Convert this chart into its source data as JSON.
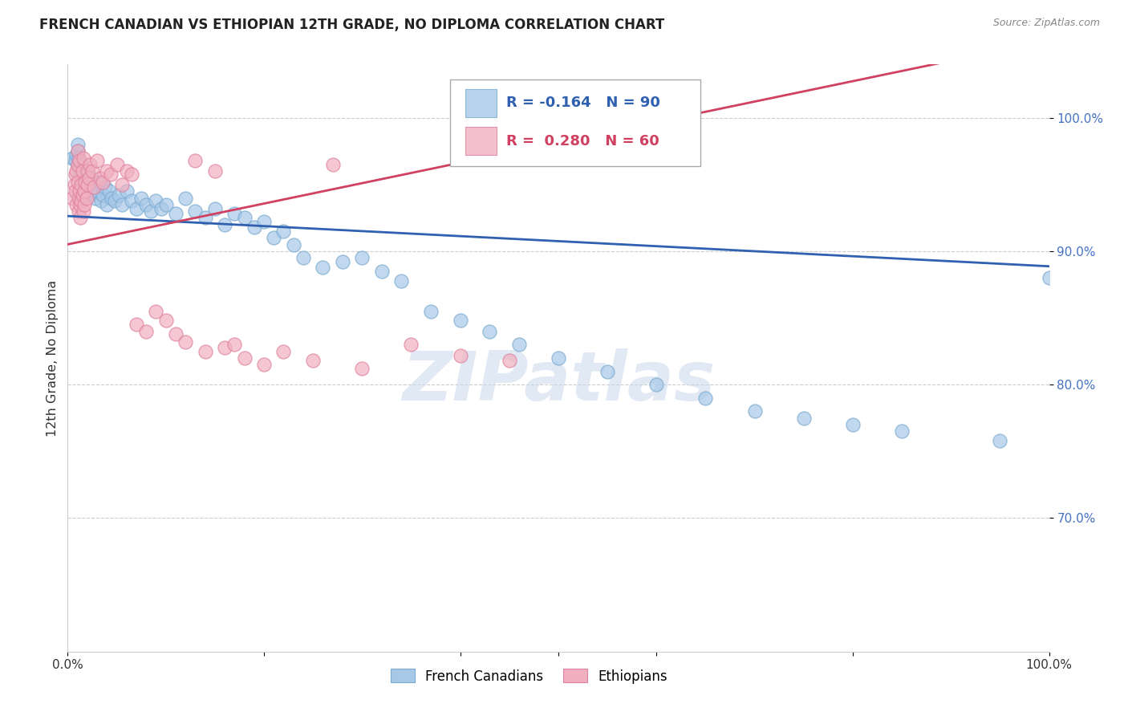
{
  "title": "FRENCH CANADIAN VS ETHIOPIAN 12TH GRADE, NO DIPLOMA CORRELATION CHART",
  "source": "Source: ZipAtlas.com",
  "ylabel": "12th Grade, No Diploma",
  "xlim": [
    0.0,
    1.0
  ],
  "ylim": [
    0.6,
    1.04
  ],
  "xtick_vals": [
    0.0,
    0.2,
    0.4,
    0.5,
    0.6,
    0.8,
    1.0
  ],
  "xtick_labels": [
    "0.0%",
    "",
    "",
    "",
    "",
    "",
    "100.0%"
  ],
  "ytick_vals": [
    0.7,
    0.8,
    0.9,
    1.0
  ],
  "ytick_labels": [
    "70.0%",
    "80.0%",
    "90.0%",
    "100.0%"
  ],
  "legend_blue_r": "-0.164",
  "legend_blue_n": "90",
  "legend_pink_r": "0.280",
  "legend_pink_n": "60",
  "legend_label_blue": "French Canadians",
  "legend_label_pink": "Ethiopians",
  "blue_color": "#A8C8E8",
  "blue_edge": "#7AAAD0",
  "pink_color": "#F0B0C0",
  "pink_edge": "#E080A0",
  "trend_blue": "#3060B0",
  "trend_pink": "#D04060",
  "watermark": "ZIPatlas",
  "blue_x": [
    0.005,
    0.008,
    0.009,
    0.01,
    0.01,
    0.01,
    0.011,
    0.011,
    0.012,
    0.012,
    0.013,
    0.013,
    0.014,
    0.014,
    0.015,
    0.015,
    0.016,
    0.016,
    0.017,
    0.017,
    0.018,
    0.018,
    0.019,
    0.019,
    0.02,
    0.02,
    0.02,
    0.021,
    0.021,
    0.022,
    0.022,
    0.023,
    0.024,
    0.025,
    0.026,
    0.027,
    0.028,
    0.03,
    0.032,
    0.034,
    0.036,
    0.038,
    0.04,
    0.042,
    0.045,
    0.048,
    0.052,
    0.055,
    0.06,
    0.065,
    0.07,
    0.075,
    0.08,
    0.085,
    0.09,
    0.095,
    0.1,
    0.11,
    0.12,
    0.13,
    0.14,
    0.15,
    0.16,
    0.17,
    0.18,
    0.19,
    0.2,
    0.21,
    0.22,
    0.23,
    0.24,
    0.26,
    0.28,
    0.3,
    0.32,
    0.34,
    0.37,
    0.4,
    0.43,
    0.46,
    0.5,
    0.55,
    0.6,
    0.65,
    0.7,
    0.75,
    0.8,
    0.85,
    0.95,
    1.0
  ],
  "blue_y": [
    0.97,
    0.968,
    0.972,
    0.975,
    0.98,
    0.965,
    0.96,
    0.97,
    0.958,
    0.962,
    0.955,
    0.96,
    0.95,
    0.965,
    0.955,
    0.962,
    0.948,
    0.958,
    0.945,
    0.955,
    0.95,
    0.96,
    0.942,
    0.952,
    0.955,
    0.96,
    0.948,
    0.945,
    0.958,
    0.95,
    0.942,
    0.948,
    0.955,
    0.945,
    0.952,
    0.948,
    0.94,
    0.945,
    0.952,
    0.938,
    0.942,
    0.948,
    0.935,
    0.945,
    0.94,
    0.938,
    0.942,
    0.935,
    0.945,
    0.938,
    0.932,
    0.94,
    0.935,
    0.93,
    0.938,
    0.932,
    0.935,
    0.928,
    0.94,
    0.93,
    0.925,
    0.932,
    0.92,
    0.928,
    0.925,
    0.918,
    0.922,
    0.91,
    0.915,
    0.905,
    0.895,
    0.888,
    0.892,
    0.895,
    0.885,
    0.878,
    0.855,
    0.848,
    0.84,
    0.83,
    0.82,
    0.81,
    0.8,
    0.79,
    0.78,
    0.775,
    0.77,
    0.765,
    0.758,
    0.88
  ],
  "pink_x": [
    0.005,
    0.007,
    0.008,
    0.008,
    0.009,
    0.009,
    0.01,
    0.01,
    0.01,
    0.011,
    0.011,
    0.012,
    0.012,
    0.013,
    0.013,
    0.014,
    0.014,
    0.015,
    0.015,
    0.016,
    0.016,
    0.017,
    0.017,
    0.018,
    0.019,
    0.02,
    0.02,
    0.022,
    0.023,
    0.025,
    0.027,
    0.03,
    0.033,
    0.036,
    0.04,
    0.044,
    0.05,
    0.055,
    0.06,
    0.065,
    0.07,
    0.08,
    0.09,
    0.1,
    0.11,
    0.12,
    0.13,
    0.14,
    0.15,
    0.16,
    0.17,
    0.18,
    0.2,
    0.22,
    0.25,
    0.27,
    0.3,
    0.35,
    0.4,
    0.45
  ],
  "pink_y": [
    0.94,
    0.95,
    0.958,
    0.945,
    0.96,
    0.935,
    0.952,
    0.965,
    0.975,
    0.94,
    0.93,
    0.945,
    0.968,
    0.935,
    0.925,
    0.95,
    0.938,
    0.96,
    0.942,
    0.93,
    0.97,
    0.945,
    0.935,
    0.952,
    0.94,
    0.96,
    0.95,
    0.955,
    0.965,
    0.96,
    0.948,
    0.968,
    0.955,
    0.952,
    0.96,
    0.958,
    0.965,
    0.95,
    0.96,
    0.958,
    0.845,
    0.84,
    0.855,
    0.848,
    0.838,
    0.832,
    0.968,
    0.825,
    0.96,
    0.828,
    0.83,
    0.82,
    0.815,
    0.825,
    0.818,
    0.965,
    0.812,
    0.83,
    0.822,
    0.818
  ]
}
